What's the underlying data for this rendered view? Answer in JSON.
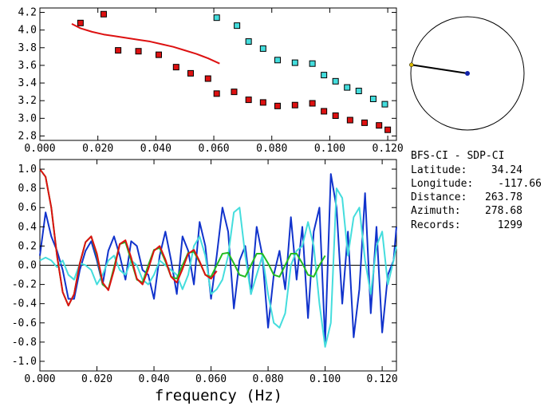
{
  "chart_data": [
    {
      "type": "scatter",
      "title": "",
      "xlabel": "",
      "ylabel": "",
      "xlim": [
        0.0,
        0.123
      ],
      "ylim": [
        2.75,
        4.25
      ],
      "x_ticks": [
        "0.000",
        "0.020",
        "0.040",
        "0.060",
        "0.080",
        "0.100",
        "0.120"
      ],
      "y_ticks": [
        "2.8",
        "3.0",
        "3.2",
        "3.4",
        "3.6",
        "3.8",
        "4.0",
        "4.2"
      ],
      "grid": false,
      "series": [
        {
          "type": "scatter",
          "color": "#dd1111",
          "x": [
            0.014,
            0.022,
            0.027,
            0.034,
            0.041,
            0.047,
            0.052,
            0.058,
            0.061,
            0.067,
            0.072,
            0.077,
            0.082,
            0.088,
            0.094,
            0.098,
            0.102,
            0.107,
            0.112,
            0.117,
            0.12
          ],
          "y": [
            4.08,
            4.18,
            3.77,
            3.76,
            3.72,
            3.58,
            3.51,
            3.45,
            3.28,
            3.3,
            3.21,
            3.18,
            3.14,
            3.15,
            3.17,
            3.08,
            3.03,
            2.98,
            2.95,
            2.92,
            2.87
          ]
        },
        {
          "type": "scatter",
          "color": "#44dddd",
          "x": [
            0.061,
            0.068,
            0.072,
            0.077,
            0.082,
            0.088,
            0.094,
            0.098,
            0.102,
            0.106,
            0.11,
            0.115,
            0.119
          ],
          "y": [
            4.14,
            4.05,
            3.87,
            3.79,
            3.66,
            3.63,
            3.62,
            3.49,
            3.42,
            3.35,
            3.31,
            3.22,
            3.16
          ]
        },
        {
          "type": "line",
          "color": "#dd1111",
          "x": [
            0.011,
            0.014,
            0.018,
            0.022,
            0.026,
            0.03,
            0.034,
            0.038,
            0.042,
            0.046,
            0.05,
            0.054,
            0.058,
            0.062
          ],
          "y": [
            4.07,
            4.02,
            3.98,
            3.95,
            3.93,
            3.91,
            3.89,
            3.87,
            3.84,
            3.81,
            3.77,
            3.73,
            3.68,
            3.62
          ]
        }
      ]
    },
    {
      "type": "line",
      "title": "",
      "xlabel": "frequency (Hz)",
      "ylabel": "",
      "xlim": [
        0.0,
        0.125
      ],
      "ylim": [
        -1.1,
        1.1
      ],
      "x_ticks": [
        "0.000",
        "0.020",
        "0.040",
        "0.060",
        "0.080",
        "0.100",
        "0.120"
      ],
      "y_ticks": [
        "1.0",
        "0.8",
        "0.6",
        "0.4",
        "0.2",
        "0.0",
        "-0.2",
        "-0.4",
        "-0.6",
        "-0.8",
        "-1.0"
      ],
      "grid": false,
      "zero_line": true,
      "series": [
        {
          "color": "#1133cc",
          "x": [
            0.0,
            0.002,
            0.004,
            0.006,
            0.008,
            0.01,
            0.012,
            0.014,
            0.016,
            0.018,
            0.02,
            0.022,
            0.024,
            0.026,
            0.028,
            0.03,
            0.032,
            0.034,
            0.036,
            0.038,
            0.04,
            0.042,
            0.044,
            0.046,
            0.048,
            0.05,
            0.052,
            0.054,
            0.056,
            0.058,
            0.06,
            0.062,
            0.064,
            0.066,
            0.068,
            0.07,
            0.072,
            0.074,
            0.076,
            0.078,
            0.08,
            0.082,
            0.084,
            0.086,
            0.088,
            0.09,
            0.092,
            0.094,
            0.096,
            0.098,
            0.1,
            0.102,
            0.104,
            0.106,
            0.108,
            0.11,
            0.112,
            0.114,
            0.116,
            0.118,
            0.12,
            0.122,
            0.124,
            0.125
          ],
          "y": [
            0.1,
            0.55,
            0.3,
            0.15,
            -0.05,
            -0.35,
            -0.35,
            -0.05,
            0.15,
            0.25,
            0.05,
            -0.2,
            0.15,
            0.3,
            0.1,
            -0.15,
            0.25,
            0.2,
            -0.05,
            -0.1,
            -0.35,
            0.1,
            0.35,
            0.05,
            -0.3,
            0.3,
            0.15,
            -0.2,
            0.45,
            0.2,
            -0.35,
            0.1,
            0.6,
            0.35,
            -0.45,
            0.05,
            0.2,
            -0.3,
            0.4,
            0.1,
            -0.65,
            -0.1,
            0.15,
            -0.25,
            0.5,
            -0.15,
            0.4,
            -0.55,
            0.35,
            0.6,
            -0.8,
            0.95,
            0.6,
            -0.4,
            0.35,
            -0.75,
            -0.25,
            0.75,
            -0.5,
            0.4,
            -0.7,
            -0.1,
            0.05,
            0.4
          ]
        },
        {
          "color": "#44dddd",
          "x": [
            0.0,
            0.002,
            0.004,
            0.006,
            0.008,
            0.01,
            0.012,
            0.014,
            0.016,
            0.018,
            0.02,
            0.022,
            0.024,
            0.026,
            0.028,
            0.03,
            0.032,
            0.034,
            0.036,
            0.038,
            0.04,
            0.042,
            0.044,
            0.046,
            0.048,
            0.05,
            0.052,
            0.054,
            0.056,
            0.058,
            0.06,
            0.062,
            0.064,
            0.066,
            0.068,
            0.07,
            0.072,
            0.074,
            0.076,
            0.078,
            0.08,
            0.082,
            0.084,
            0.086,
            0.088,
            0.09,
            0.092,
            0.094,
            0.096,
            0.098,
            0.1,
            0.102,
            0.104,
            0.106,
            0.108,
            0.11,
            0.112,
            0.114,
            0.116,
            0.118,
            0.12,
            0.122,
            0.124,
            0.125
          ],
          "y": [
            0.05,
            0.08,
            0.05,
            -0.02,
            0.05,
            -0.1,
            -0.15,
            0.02,
            0.0,
            -0.05,
            -0.2,
            -0.1,
            0.05,
            0.1,
            -0.05,
            -0.1,
            0.05,
            0.0,
            -0.15,
            -0.2,
            -0.1,
            0.05,
            0.0,
            -0.05,
            -0.1,
            -0.25,
            -0.1,
            0.2,
            0.3,
            0.1,
            -0.3,
            -0.25,
            -0.15,
            0.1,
            0.55,
            0.6,
            0.1,
            -0.3,
            -0.1,
            0.1,
            -0.3,
            -0.6,
            -0.65,
            -0.5,
            0.0,
            0.15,
            0.2,
            0.45,
            0.2,
            -0.4,
            -0.85,
            -0.6,
            0.8,
            0.7,
            0.1,
            0.5,
            0.6,
            0.05,
            -0.3,
            0.2,
            0.35,
            -0.2,
            0.05,
            0.2
          ]
        },
        {
          "color": "#22bb22",
          "x": [
            0.0,
            0.002,
            0.004,
            0.006,
            0.008,
            0.01,
            0.012,
            0.014,
            0.016,
            0.018,
            0.02,
            0.022,
            0.024,
            0.026,
            0.028,
            0.03,
            0.032,
            0.034,
            0.036,
            0.038,
            0.04,
            0.042,
            0.044,
            0.046,
            0.048,
            0.05,
            0.052,
            0.054,
            0.056,
            0.058,
            0.06,
            0.062,
            0.064,
            0.066,
            0.068,
            0.07,
            0.072,
            0.074,
            0.076,
            0.078,
            0.08,
            0.082,
            0.084,
            0.086,
            0.088,
            0.09,
            0.092,
            0.094,
            0.096,
            0.098,
            0.1
          ],
          "y": [
            1.0,
            0.92,
            0.6,
            0.1,
            -0.28,
            -0.42,
            -0.3,
            0.02,
            0.24,
            0.3,
            0.1,
            -0.2,
            -0.25,
            -0.02,
            0.22,
            0.24,
            0.05,
            -0.15,
            -0.18,
            0.0,
            0.16,
            0.18,
            0.04,
            -0.12,
            -0.14,
            0.0,
            0.13,
            0.14,
            0.03,
            -0.1,
            -0.12,
            0.0,
            0.12,
            0.13,
            0.02,
            -0.1,
            -0.12,
            0.0,
            0.12,
            0.12,
            0.02,
            -0.1,
            -0.12,
            0.0,
            0.12,
            0.12,
            0.02,
            -0.1,
            -0.12,
            0.0,
            0.1
          ]
        },
        {
          "color": "#dd1111",
          "x": [
            0.0,
            0.002,
            0.004,
            0.006,
            0.008,
            0.01,
            0.012,
            0.014,
            0.016,
            0.018,
            0.02,
            0.022,
            0.024,
            0.026,
            0.028,
            0.03,
            0.032,
            0.034,
            0.036,
            0.038,
            0.04,
            0.042,
            0.044,
            0.046,
            0.048,
            0.05,
            0.052,
            0.054,
            0.056,
            0.058,
            0.06,
            0.062
          ],
          "y": [
            1.0,
            0.92,
            0.6,
            0.1,
            -0.28,
            -0.42,
            -0.3,
            0.02,
            0.24,
            0.3,
            0.12,
            -0.18,
            -0.26,
            -0.05,
            0.22,
            0.26,
            0.08,
            -0.14,
            -0.2,
            -0.04,
            0.15,
            0.2,
            0.06,
            -0.12,
            -0.18,
            -0.04,
            0.12,
            0.16,
            0.04,
            -0.1,
            -0.14,
            -0.06
          ]
        }
      ]
    },
    {
      "type": "diagram",
      "description_free": true,
      "azimuth_deg": 278.68,
      "circle_color": "#000000",
      "line_color": "#000000",
      "center_dot_color": "#1122aa",
      "end_dot_color": "#ddbb00"
    }
  ],
  "info": {
    "title": "BFS-CI - SDP-CI",
    "lines": [
      {
        "label": "Latitude:",
        "value": "34.24"
      },
      {
        "label": "Longitude:",
        "value": "-117.66"
      },
      {
        "label": "Distance:",
        "value": "263.78"
      },
      {
        "label": "Azimuth:",
        "value": "278.68"
      },
      {
        "label": "Records:",
        "value": "1299"
      }
    ]
  }
}
